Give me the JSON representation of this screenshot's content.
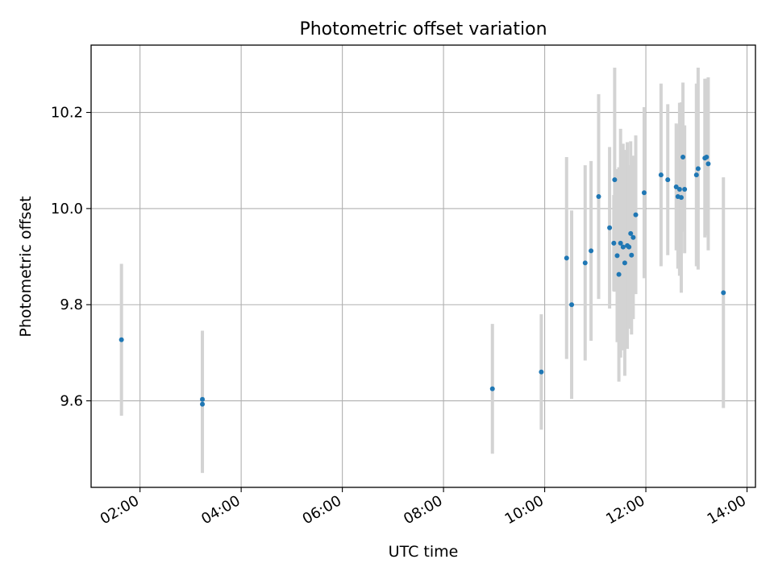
{
  "chart_data": {
    "type": "scatter",
    "title": "Photometric offset variation",
    "xlabel": "UTC time",
    "ylabel": "Photometric offset",
    "x_unit": "UTC hour of day",
    "xlim": [
      "01:02",
      "14:10"
    ],
    "ylim": [
      9.42,
      10.34
    ],
    "x_ticks": [
      "02:00",
      "04:00",
      "06:00",
      "08:00",
      "10:00",
      "12:00",
      "14:00"
    ],
    "y_ticks": [
      9.6,
      9.8,
      10.0,
      10.2
    ],
    "y_tick_labels": [
      "9.6",
      "9.8",
      "10.0",
      "10.2"
    ],
    "grid": true,
    "marker_color": "#1f77b4",
    "errorbar_color": "#d3d3d3",
    "series": [
      {
        "points": [
          {
            "x": "01:38",
            "y": 9.727,
            "err": 0.158
          },
          {
            "x": "03:14",
            "y": 9.603,
            "err": 0.143
          },
          {
            "x": "03:14",
            "y": 9.593,
            "err": 0.143
          },
          {
            "x": "08:58",
            "y": 9.625,
            "err": 0.135
          },
          {
            "x": "09:56",
            "y": 9.66,
            "err": 0.12
          },
          {
            "x": "10:26",
            "y": 9.897,
            "err": 0.21
          },
          {
            "x": "10:32",
            "y": 9.8,
            "err": 0.196
          },
          {
            "x": "10:48",
            "y": 9.887,
            "err": 0.203
          },
          {
            "x": "10:55",
            "y": 9.912,
            "err": 0.187
          },
          {
            "x": "11:04",
            "y": 10.025,
            "err": 0.213
          },
          {
            "x": "11:17",
            "y": 9.96,
            "err": 0.168
          },
          {
            "x": "11:22",
            "y": 9.928,
            "err": 0.1
          },
          {
            "x": "11:23",
            "y": 10.06,
            "err": 0.233
          },
          {
            "x": "11:26",
            "y": 9.902,
            "err": 0.18
          },
          {
            "x": "11:28",
            "y": 9.863,
            "err": 0.223
          },
          {
            "x": "11:30",
            "y": 9.928,
            "err": 0.238
          },
          {
            "x": "11:33",
            "y": 9.92,
            "err": 0.215
          },
          {
            "x": "11:35",
            "y": 9.887,
            "err": 0.235
          },
          {
            "x": "11:38",
            "y": 9.923,
            "err": 0.215
          },
          {
            "x": "11:40",
            "y": 9.92,
            "err": 0.17
          },
          {
            "x": "11:42",
            "y": 9.948,
            "err": 0.192
          },
          {
            "x": "11:43",
            "y": 9.903,
            "err": 0.165
          },
          {
            "x": "11:45",
            "y": 9.94,
            "err": 0.17
          },
          {
            "x": "11:48",
            "y": 9.987,
            "err": 0.165
          },
          {
            "x": "11:58",
            "y": 10.033,
            "err": 0.178
          },
          {
            "x": "12:18",
            "y": 10.07,
            "err": 0.19
          },
          {
            "x": "12:26",
            "y": 10.06,
            "err": 0.157
          },
          {
            "x": "12:36",
            "y": 10.045,
            "err": 0.132
          },
          {
            "x": "12:38",
            "y": 10.025,
            "err": 0.15
          },
          {
            "x": "12:40",
            "y": 10.04,
            "err": 0.18
          },
          {
            "x": "12:42",
            "y": 10.023,
            "err": 0.198
          },
          {
            "x": "12:44",
            "y": 10.107,
            "err": 0.155
          },
          {
            "x": "12:46",
            "y": 10.04,
            "err": 0.133
          },
          {
            "x": "13:00",
            "y": 10.07,
            "err": 0.19
          },
          {
            "x": "13:02",
            "y": 10.083,
            "err": 0.21
          },
          {
            "x": "13:10",
            "y": 10.105,
            "err": 0.165
          },
          {
            "x": "13:12",
            "y": 10.107,
            "err": 0.163
          },
          {
            "x": "13:14",
            "y": 10.093,
            "err": 0.18
          },
          {
            "x": "13:32",
            "y": 9.825,
            "err": 0.24
          }
        ]
      }
    ]
  }
}
